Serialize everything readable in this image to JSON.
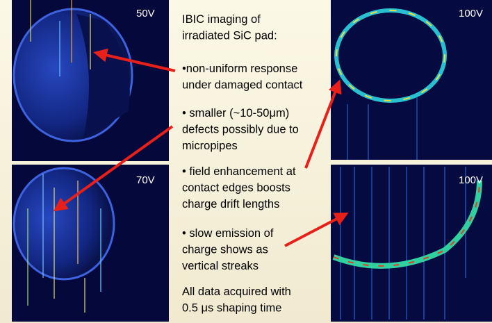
{
  "panels": [
    {
      "label": "50V"
    },
    {
      "label": "70V"
    },
    {
      "label": "100V"
    },
    {
      "label": "100V"
    }
  ],
  "text": {
    "title": [
      "IBIC imaging of",
      "irradiated SiC pad:"
    ],
    "bullets": [
      [
        "•non-uniform response",
        "under damaged contact"
      ],
      [
        "• smaller (~10-50μm)",
        "defects possibly due to",
        "micropipes"
      ],
      [
        "• field enhancement at",
        "contact edges boosts",
        "charge drift lengths"
      ],
      [
        "• slow emission of",
        "charge shows as",
        "vertical streaks"
      ]
    ],
    "footer": [
      "All data acquired with",
      "0.5 μs shaping time"
    ]
  }
}
